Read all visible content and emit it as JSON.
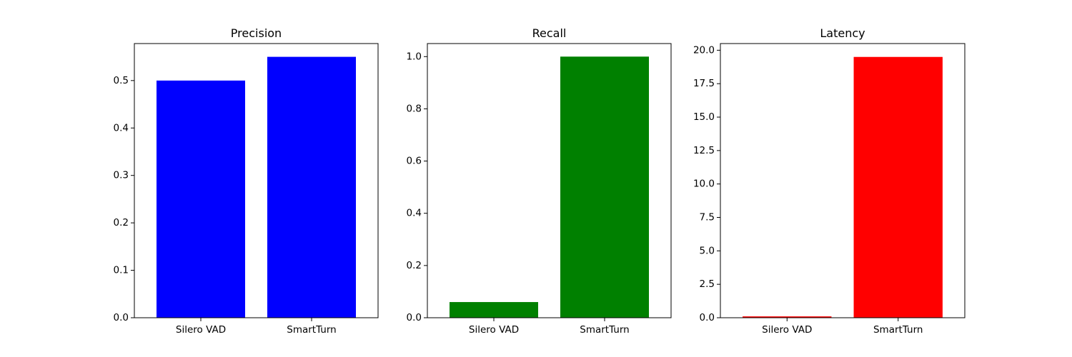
{
  "chart_data": [
    {
      "type": "bar",
      "title": "Precision",
      "categories": [
        "Silero VAD",
        "SmartTurn"
      ],
      "values": [
        0.5,
        0.55
      ],
      "color": "#0000ff",
      "ylim": [
        0,
        0.578
      ],
      "yticks": [
        "0.0",
        "0.1",
        "0.2",
        "0.3",
        "0.4",
        "0.5"
      ],
      "ytick_values": [
        0,
        0.1,
        0.2,
        0.3,
        0.4,
        0.5
      ],
      "xlabel": "",
      "ylabel": "",
      "grid": false
    },
    {
      "type": "bar",
      "title": "Recall",
      "categories": [
        "Silero VAD",
        "SmartTurn"
      ],
      "values": [
        0.06,
        1.0
      ],
      "color": "#008000",
      "ylim": [
        0,
        1.05
      ],
      "yticks": [
        "0.0",
        "0.2",
        "0.4",
        "0.6",
        "0.8",
        "1.0"
      ],
      "ytick_values": [
        0,
        0.2,
        0.4,
        0.6,
        0.8,
        1.0
      ],
      "xlabel": "",
      "ylabel": "",
      "grid": false
    },
    {
      "type": "bar",
      "title": "Latency",
      "categories": [
        "Silero VAD",
        "SmartTurn"
      ],
      "values": [
        0.1,
        19.5
      ],
      "color": "#ff0000",
      "ylim": [
        0,
        20.5
      ],
      "yticks": [
        "0.0",
        "2.5",
        "5.0",
        "7.5",
        "10.0",
        "12.5",
        "15.0",
        "17.5",
        "20.0"
      ],
      "ytick_values": [
        0,
        2.5,
        5.0,
        7.5,
        10.0,
        12.5,
        15.0,
        17.5,
        20.0
      ],
      "xlabel": "",
      "ylabel": "",
      "grid": false
    }
  ]
}
